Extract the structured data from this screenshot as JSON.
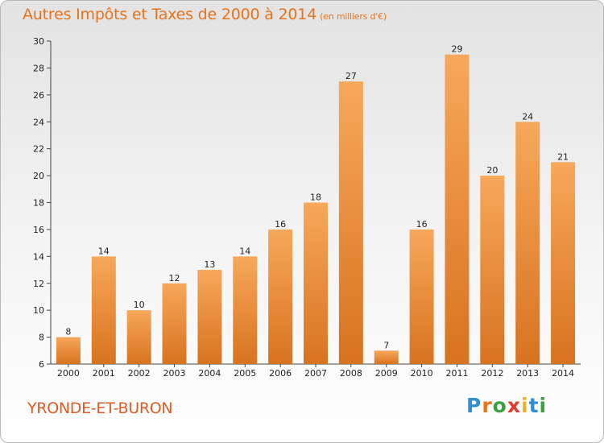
{
  "header": {
    "title": "Autres Impôts et Taxes de 2000 à 2014",
    "unit": "(en milliers d'€)"
  },
  "footer": {
    "place": "YRONDE-ET-BURON",
    "logo": "Proxiti"
  },
  "colors": {
    "bar_top": "#f7a85a",
    "bar_bottom": "#d8731f",
    "title": "#e8731a",
    "place": "#e05a21"
  },
  "chart_data": {
    "type": "bar",
    "title": "Autres Impôts et Taxes de 2000 à 2014",
    "categories": [
      "2000",
      "2001",
      "2002",
      "2003",
      "2004",
      "2005",
      "2006",
      "2007",
      "2008",
      "2009",
      "2010",
      "2011",
      "2012",
      "2013",
      "2014"
    ],
    "values": [
      8,
      14,
      10,
      12,
      13,
      14,
      16,
      18,
      27,
      7,
      16,
      29,
      20,
      24,
      21
    ],
    "ylim": [
      6,
      30
    ],
    "yticks": [
      6,
      8,
      10,
      12,
      14,
      16,
      18,
      20,
      22,
      24,
      26,
      28,
      30
    ],
    "grid": false,
    "xlabel": "",
    "ylabel": ""
  }
}
